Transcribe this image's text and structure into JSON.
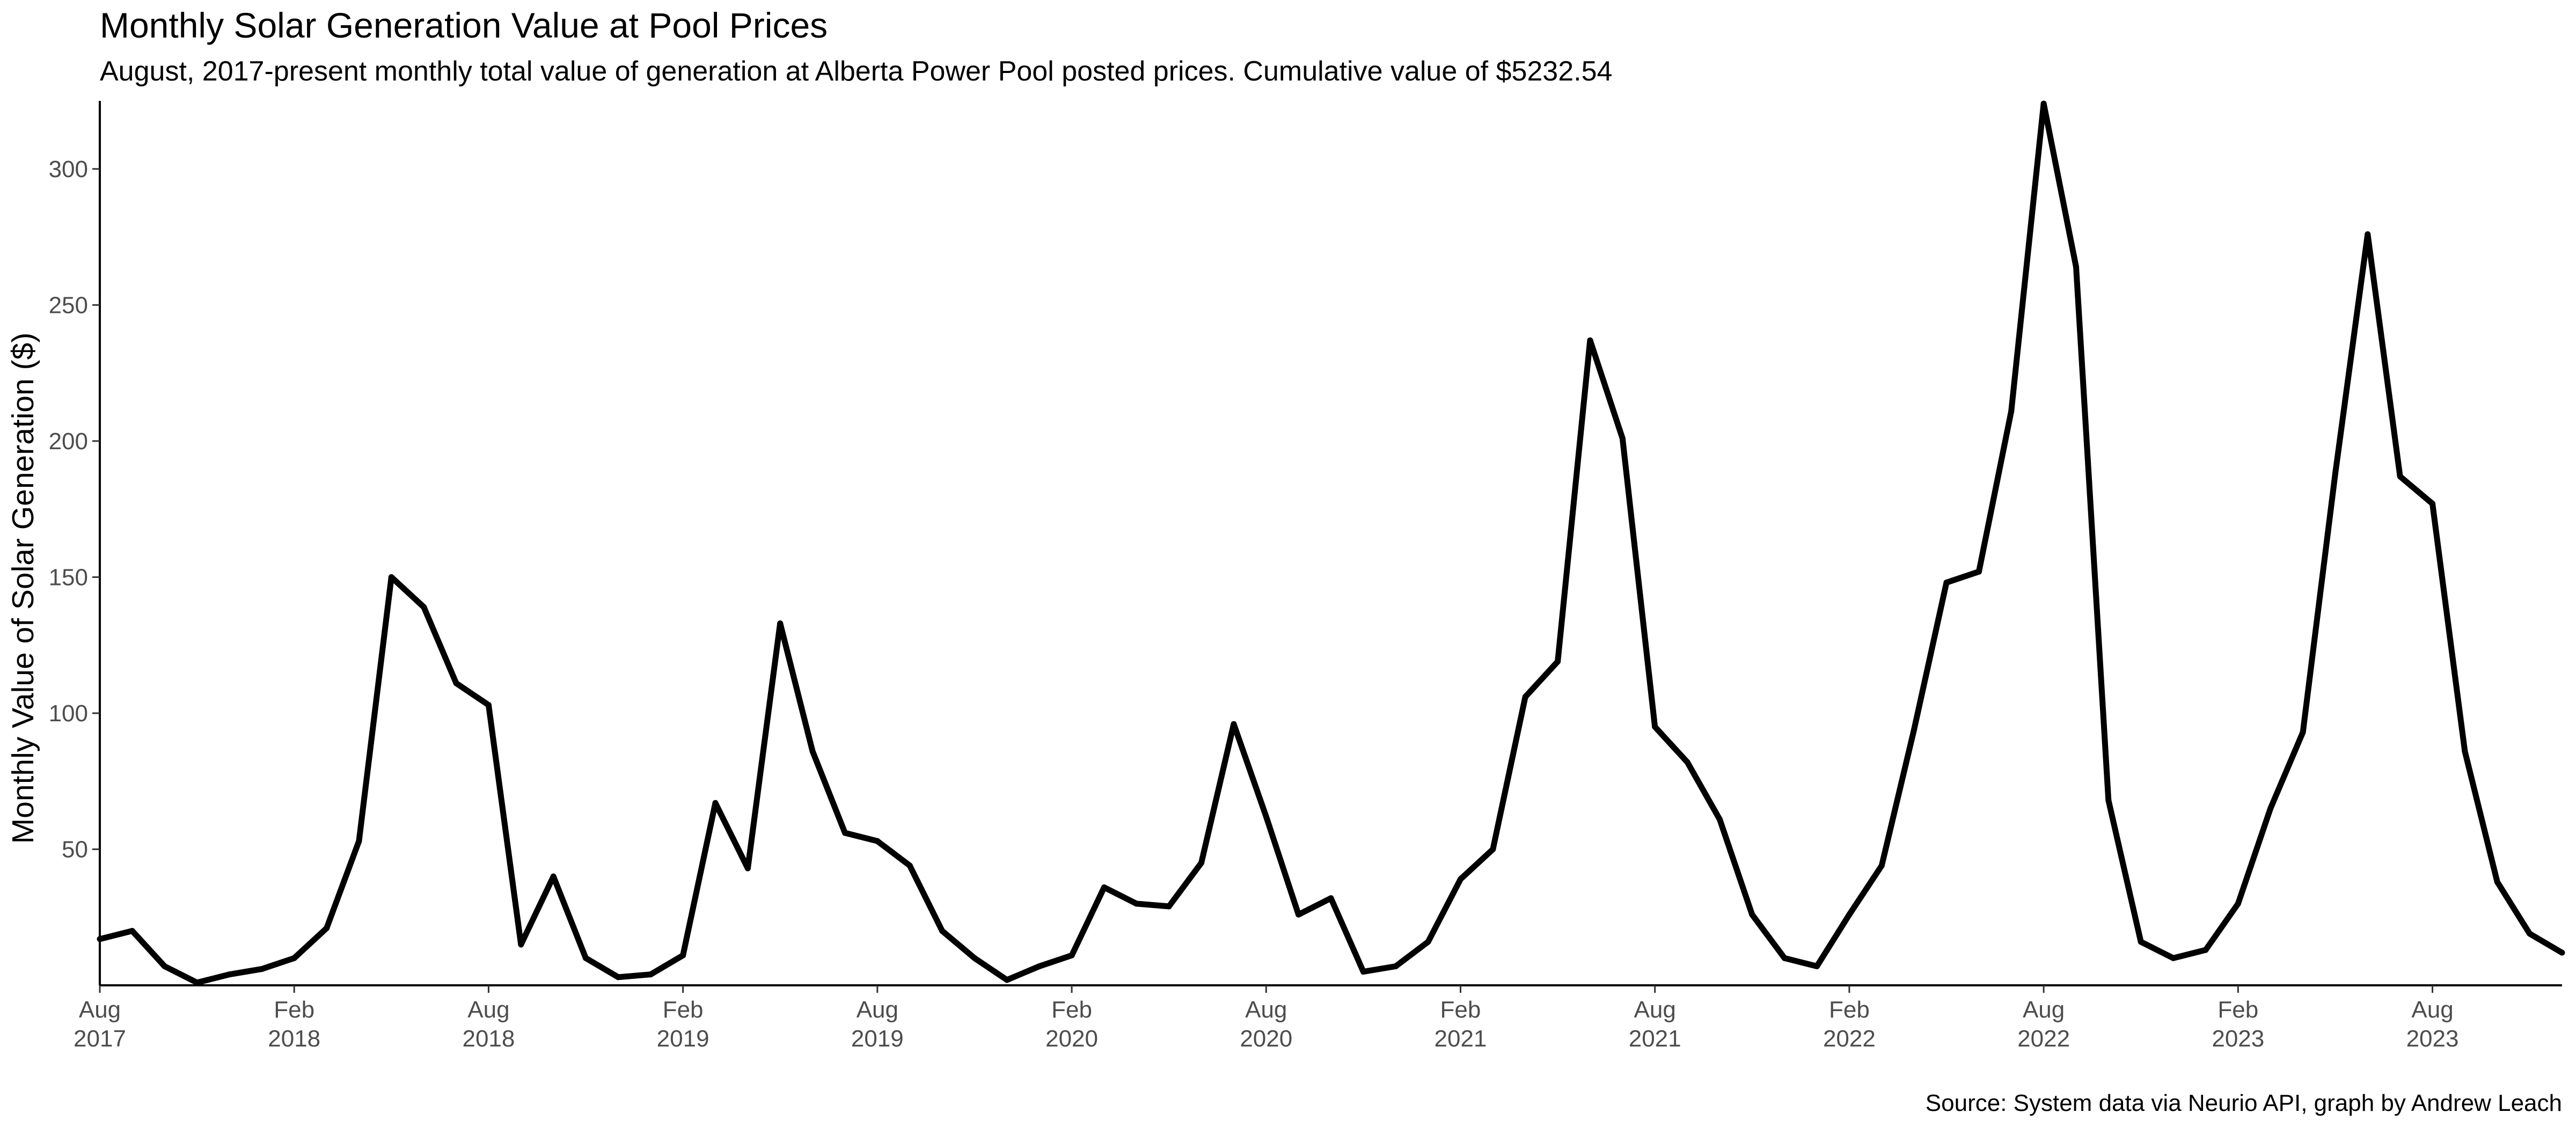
{
  "chart_data": {
    "type": "line",
    "title": "Monthly Solar Generation Value at Pool Prices",
    "subtitle": "August, 2017-present monthly total value of generation at Alberta Power Pool posted prices. Cumulative value of $5232.54",
    "xlabel": "",
    "ylabel": "Monthly Value of Solar Generation ($)",
    "caption": "Source: System data via Neurio API, graph by Andrew Leach",
    "ylim": [
      0,
      325
    ],
    "xlim": [
      "2017-08",
      "2023-12"
    ],
    "grid": false,
    "legend": "none",
    "line_color": "#000000",
    "y_ticks": [
      {
        "value": 50,
        "label": "50"
      },
      {
        "value": 100,
        "label": "100"
      },
      {
        "value": 150,
        "label": "150"
      },
      {
        "value": 200,
        "label": "200"
      },
      {
        "value": 250,
        "label": "250"
      },
      {
        "value": 300,
        "label": "300"
      }
    ],
    "x_ticks": [
      {
        "date": "2017-08",
        "line1": "Aug",
        "line2": "2017"
      },
      {
        "date": "2018-02",
        "line1": "Feb",
        "line2": "2018"
      },
      {
        "date": "2018-08",
        "line1": "Aug",
        "line2": "2018"
      },
      {
        "date": "2019-02",
        "line1": "Feb",
        "line2": "2019"
      },
      {
        "date": "2019-08",
        "line1": "Aug",
        "line2": "2019"
      },
      {
        "date": "2020-02",
        "line1": "Feb",
        "line2": "2020"
      },
      {
        "date": "2020-08",
        "line1": "Aug",
        "line2": "2020"
      },
      {
        "date": "2021-02",
        "line1": "Feb",
        "line2": "2021"
      },
      {
        "date": "2021-08",
        "line1": "Aug",
        "line2": "2021"
      },
      {
        "date": "2022-02",
        "line1": "Feb",
        "line2": "2022"
      },
      {
        "date": "2022-08",
        "line1": "Aug",
        "line2": "2022"
      },
      {
        "date": "2023-02",
        "line1": "Feb",
        "line2": "2023"
      },
      {
        "date": "2023-08",
        "line1": "Aug",
        "line2": "2023"
      }
    ],
    "x": [
      "2017-08",
      "2017-09",
      "2017-10",
      "2017-11",
      "2017-12",
      "2018-01",
      "2018-02",
      "2018-03",
      "2018-04",
      "2018-05",
      "2018-06",
      "2018-07",
      "2018-08",
      "2018-09",
      "2018-10",
      "2018-11",
      "2018-12",
      "2019-01",
      "2019-02",
      "2019-03",
      "2019-04",
      "2019-05",
      "2019-06",
      "2019-07",
      "2019-08",
      "2019-09",
      "2019-10",
      "2019-11",
      "2019-12",
      "2020-01",
      "2020-02",
      "2020-03",
      "2020-04",
      "2020-05",
      "2020-06",
      "2020-07",
      "2020-08",
      "2020-09",
      "2020-10",
      "2020-11",
      "2020-12",
      "2021-01",
      "2021-02",
      "2021-03",
      "2021-04",
      "2021-05",
      "2021-06",
      "2021-07",
      "2021-08",
      "2021-09",
      "2021-10",
      "2021-11",
      "2021-12",
      "2022-01",
      "2022-02",
      "2022-03",
      "2022-04",
      "2022-05",
      "2022-06",
      "2022-07",
      "2022-08",
      "2022-09",
      "2022-10",
      "2022-11",
      "2022-12",
      "2023-01",
      "2023-02",
      "2023-03",
      "2023-04",
      "2023-05",
      "2023-06",
      "2023-07",
      "2023-08",
      "2023-09",
      "2023-10",
      "2023-11",
      "2023-12"
    ],
    "series": [
      {
        "values": [
          17,
          20,
          7,
          1,
          4,
          6,
          10,
          21,
          53,
          150,
          139,
          111,
          103,
          15,
          40,
          10,
          3,
          4,
          11,
          67,
          43,
          133,
          86,
          56,
          53,
          44,
          20,
          10,
          2,
          7,
          11,
          36,
          30,
          29,
          45,
          96,
          62,
          26,
          32,
          5,
          7,
          16,
          39,
          50,
          106,
          119,
          237,
          201,
          95,
          82,
          61,
          26,
          10,
          7,
          26,
          44,
          94,
          148,
          152,
          211,
          324,
          264,
          68,
          16,
          10,
          13,
          30,
          65,
          93,
          188,
          276,
          187,
          177,
          86,
          38,
          19,
          12
        ]
      }
    ]
  }
}
